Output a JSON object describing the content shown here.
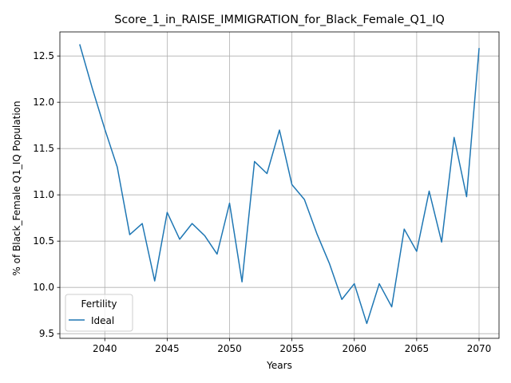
{
  "chart_data": {
    "type": "line",
    "title": "Score_1_in_RAISE_IMMIGRATION_for_Black_Female_Q1_IQ",
    "xlabel": "Years",
    "ylabel": "% of Black_Female Q1_IQ Population",
    "xlim": [
      2036.4,
      2071.6
    ],
    "ylim": [
      9.45,
      12.76
    ],
    "xticks": [
      2040,
      2045,
      2050,
      2055,
      2060,
      2065,
      2070
    ],
    "yticks": [
      9.5,
      10.0,
      10.5,
      11.0,
      11.5,
      12.0,
      12.5
    ],
    "ytick_labels": [
      "9.5",
      "10.0",
      "10.5",
      "11.0",
      "11.5",
      "12.0",
      "12.5"
    ],
    "grid": true,
    "legend": {
      "title": "Fertility",
      "placement": "lower-left"
    },
    "series": [
      {
        "name": "Ideal",
        "color": "#1f77b4",
        "x": [
          2038,
          2039,
          2040,
          2041,
          2042,
          2043,
          2044,
          2045,
          2046,
          2047,
          2048,
          2049,
          2050,
          2051,
          2052,
          2053,
          2054,
          2055,
          2056,
          2057,
          2058,
          2059,
          2060,
          2061,
          2062,
          2063,
          2064,
          2065,
          2066,
          2067,
          2068,
          2069,
          2070
        ],
        "values": [
          12.62,
          12.15,
          11.71,
          11.3,
          10.57,
          10.69,
          10.07,
          10.81,
          10.52,
          10.69,
          10.56,
          10.36,
          10.91,
          10.06,
          11.36,
          11.23,
          11.7,
          11.11,
          10.95,
          10.58,
          10.26,
          9.87,
          10.04,
          9.61,
          10.04,
          9.79,
          10.63,
          10.39,
          11.04,
          10.49,
          11.62,
          10.98,
          12.58
        ]
      }
    ]
  }
}
